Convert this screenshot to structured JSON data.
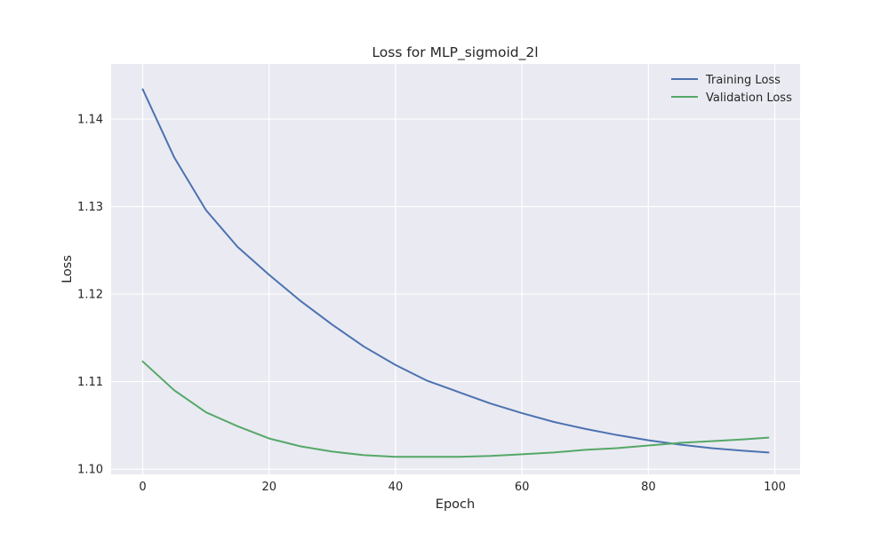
{
  "chart_data": {
    "type": "line",
    "title": "Loss for MLP_sigmoid_2l",
    "xlabel": "Epoch",
    "ylabel": "Loss",
    "xlim": [
      -5,
      104
    ],
    "ylim": [
      1.0994,
      1.1463
    ],
    "xticks": [
      0,
      20,
      40,
      60,
      80,
      100
    ],
    "yticks": [
      1.1,
      1.11,
      1.12,
      1.13,
      1.14
    ],
    "ytick_labels": [
      "1.10",
      "1.11",
      "1.12",
      "1.13",
      "1.14"
    ],
    "grid": true,
    "legend_position": "top-right",
    "colors": {
      "background": "#eaeaf2",
      "grid": "#ffffff",
      "training": "#4c72b0",
      "validation": "#55a868"
    },
    "series": [
      {
        "name": "Training Loss",
        "color": "#4c72b0",
        "x": [
          0,
          5,
          10,
          15,
          20,
          25,
          30,
          35,
          40,
          45,
          50,
          55,
          60,
          65,
          70,
          75,
          80,
          85,
          90,
          95,
          99
        ],
        "values": [
          1.1434,
          1.1356,
          1.1296,
          1.1254,
          1.1222,
          1.1192,
          1.1165,
          1.114,
          1.1119,
          1.1101,
          1.1088,
          1.1075,
          1.1064,
          1.1054,
          1.1046,
          1.1039,
          1.1033,
          1.1028,
          1.1024,
          1.1021,
          1.1019
        ]
      },
      {
        "name": "Validation Loss",
        "color": "#55a868",
        "x": [
          0,
          5,
          10,
          15,
          20,
          25,
          30,
          35,
          40,
          45,
          50,
          55,
          60,
          65,
          70,
          75,
          80,
          85,
          90,
          95,
          99
        ],
        "values": [
          1.1123,
          1.109,
          1.1065,
          1.1049,
          1.1035,
          1.1026,
          1.102,
          1.1016,
          1.1014,
          1.1014,
          1.1014,
          1.1015,
          1.1017,
          1.1019,
          1.1022,
          1.1024,
          1.1027,
          1.103,
          1.1032,
          1.1034,
          1.1036
        ]
      }
    ]
  }
}
